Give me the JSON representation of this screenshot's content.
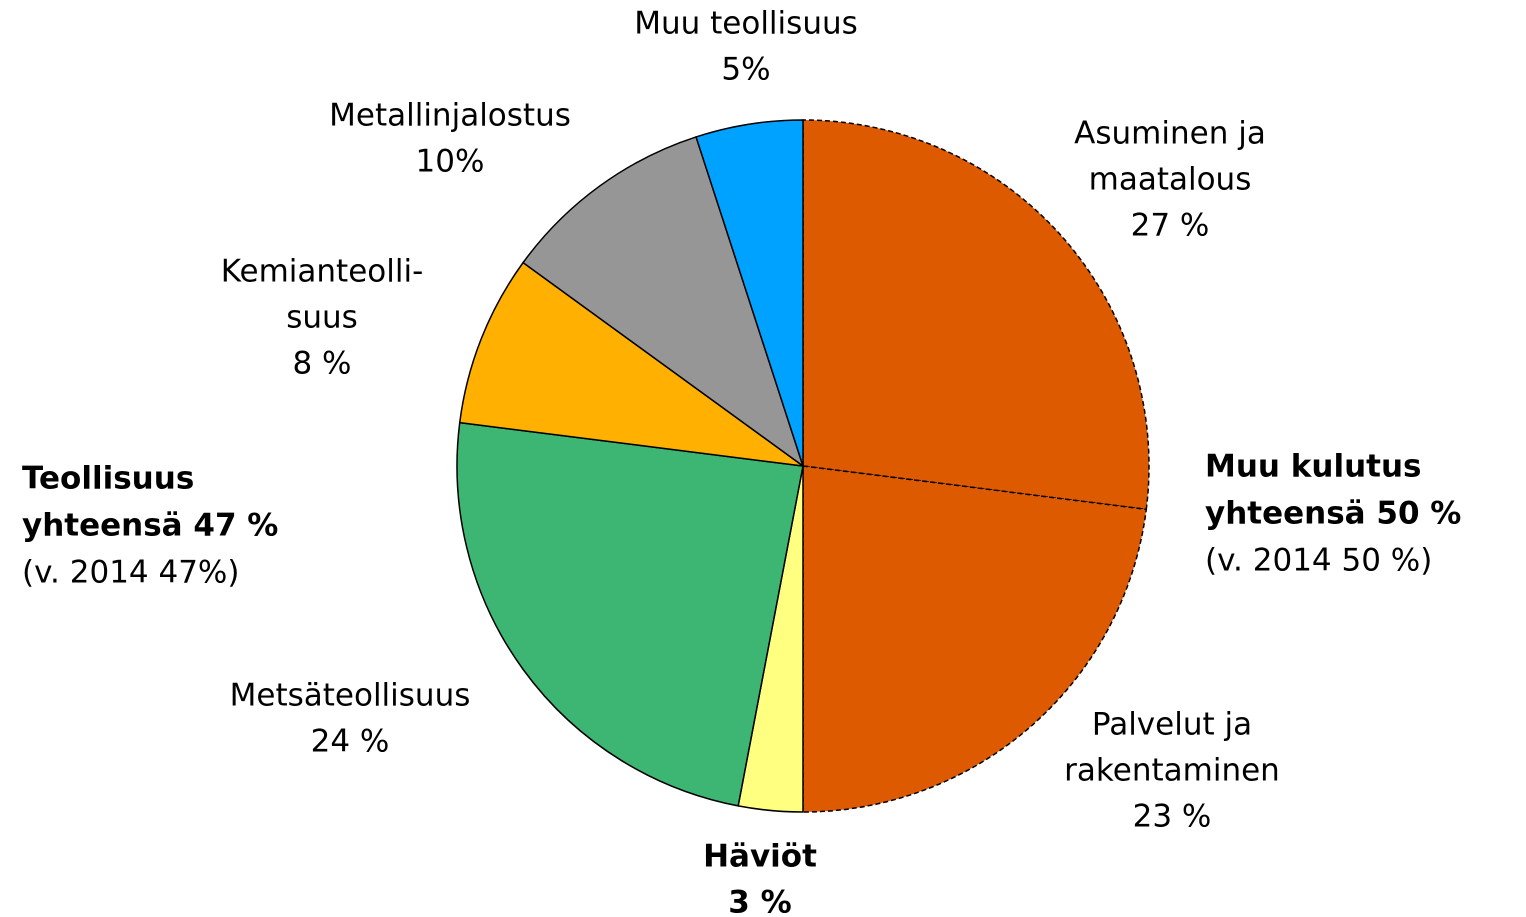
{
  "chart_data": {
    "type": "pie",
    "categories": [
      [
        "Asuminen ja",
        "maatalous"
      ],
      [
        "Palvelut ja",
        "rakentaminen"
      ],
      [
        "Häviöt"
      ],
      [
        "Metsäteollisuus"
      ],
      [
        "Kemianteolli-",
        "suus"
      ],
      [
        "Metallinjalostus"
      ],
      [
        "Muu teollisuus"
      ]
    ],
    "values": [
      27,
      23,
      3,
      24,
      8,
      10,
      5
    ],
    "value_labels": [
      "27 %",
      "23 %",
      "3 %",
      "24 %",
      "8 %",
      "10%",
      "5%"
    ],
    "colors": [
      "#dd5a00",
      "#dd5a00",
      "#ffff80",
      "#3db573",
      "#ffb000",
      "#969696",
      "#00a2ff"
    ],
    "annotations": [
      {
        "bold": [
          "Muu kulutus",
          "yhteensä 50 %"
        ],
        "note": "(v. 2014 50 %)"
      },
      {
        "bold": [
          "Teollisuus",
          "yhteensä 47 %"
        ],
        "note": "(v. 2014 47%)"
      }
    ]
  }
}
